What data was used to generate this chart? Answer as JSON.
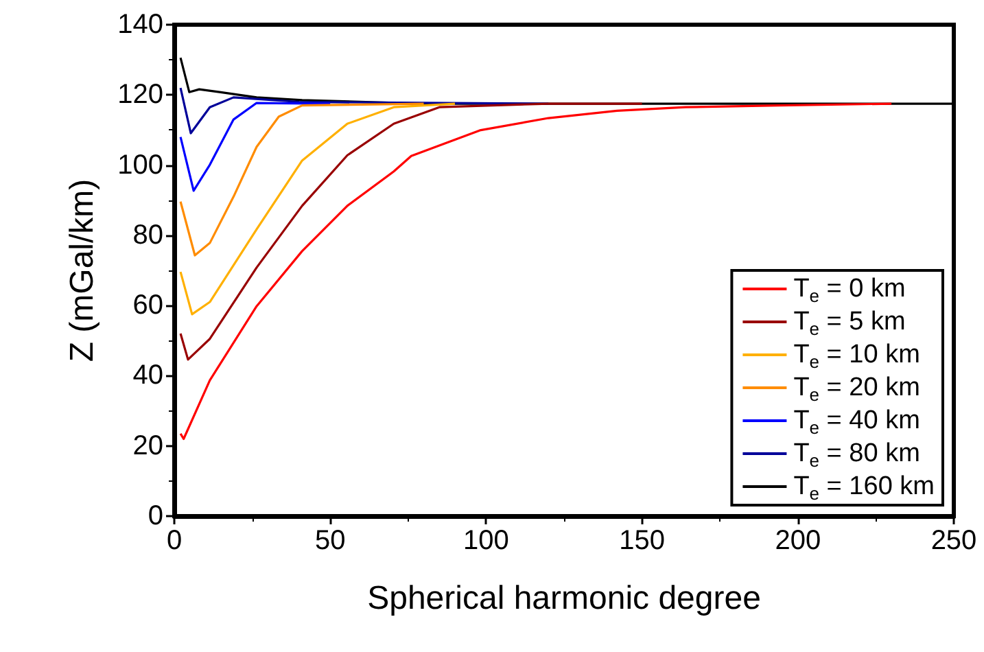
{
  "chart_data": {
    "type": "line",
    "xlabel": "Spherical harmonic degree",
    "ylabel": "Z (mGal/km)",
    "xlim": [
      0,
      250
    ],
    "xticks": [
      0,
      50,
      100,
      150,
      200,
      250
    ],
    "ylim": [
      0,
      140
    ],
    "yticks": [
      0,
      20,
      40,
      60,
      80,
      100,
      120,
      140
    ],
    "grid": false,
    "legend": "bottom right",
    "marker": "none",
    "line_style": "solid",
    "series": [
      {
        "name": "T$_{e}$ = 0 km",
        "color": "#ff0000",
        "x": [
          2,
          3,
          11.4,
          26.4,
          41,
          55.5,
          70.4,
          76,
          85,
          98,
          120,
          142,
          164,
          194,
          230
        ],
        "values": [
          23.5,
          22,
          38.7,
          59.8,
          75.5,
          88.4,
          98.2,
          102.6,
          105.6,
          109.9,
          113.4,
          115.5,
          116.5,
          117,
          117.5
        ]
      },
      {
        "name": "T$_{e}$ = 5 km",
        "color": "#990000",
        "x": [
          2,
          4.4,
          11.4,
          26.4,
          41,
          55.5,
          70.4,
          85,
          120,
          150
        ],
        "values": [
          52,
          44.6,
          50.5,
          70.8,
          88.4,
          102.8,
          111.8,
          116.5,
          117.5,
          117.5
        ]
      },
      {
        "name": "T$_{e}$ = 10 km",
        "color": "#ffb000",
        "x": [
          2,
          5.7,
          11.4,
          26.4,
          41,
          55.5,
          70.4,
          90
        ],
        "values": [
          69.6,
          57.5,
          61,
          81.7,
          101.3,
          111.8,
          116.5,
          117.5
        ]
      },
      {
        "name": "T$_{e}$ = 20 km",
        "color": "#ff8c00",
        "x": [
          2,
          6.6,
          11.4,
          19,
          26.4,
          33.5,
          41,
          80
        ],
        "values": [
          89.6,
          74.3,
          77.8,
          91,
          105.2,
          113.8,
          117,
          117.5
        ]
      },
      {
        "name": "T$_{e}$ = 40 km",
        "color": "#0000ff",
        "x": [
          2,
          6.2,
          11.4,
          19,
          26.4,
          50
        ],
        "values": [
          108,
          92.7,
          100.1,
          113,
          117.7,
          117.5
        ]
      },
      {
        "name": "T$_{e}$ = 80 km",
        "color": "#000099",
        "x": [
          2,
          5.3,
          11.4,
          19,
          40,
          120
        ],
        "values": [
          122,
          109.1,
          116.5,
          119.3,
          118,
          117.5
        ]
      },
      {
        "name": "T$_{e}$ = 160 km",
        "color": "#000000",
        "x": [
          2,
          4.8,
          8,
          14.5,
          26.4,
          41,
          80,
          250
        ],
        "values": [
          130.6,
          120.8,
          121.6,
          120.8,
          119.3,
          118.5,
          117.5,
          117.5
        ]
      }
    ]
  }
}
